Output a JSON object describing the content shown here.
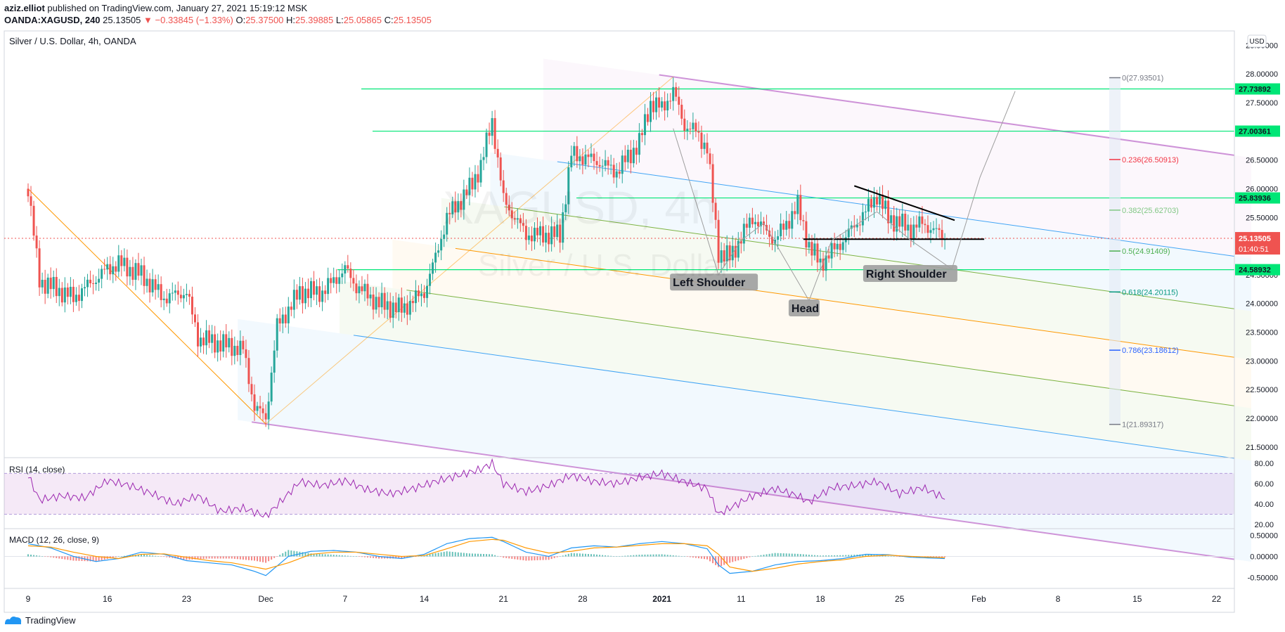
{
  "header": {
    "publisher": "aziz.elliot",
    "published_text": "published on TradingView.com, January 27, 2021 15:19:12 MSK",
    "symbol": "OANDA:XAGUSD, 240",
    "last": "25.13505",
    "change": "−0.33845 (−1.33%)",
    "o_label": "O:",
    "o": "25.37500",
    "h_label": "H:",
    "h": "25.39885",
    "l_label": "L:",
    "l": "25.05865",
    "c_label": "C:",
    "c": "25.13505"
  },
  "pane": {
    "title": "Silver / U.S. Dollar, 4h, OANDA",
    "currency": "USD",
    "watermark_symbol": "XAGUSD, 4h",
    "watermark_name": "Silver / U.S. Dollar"
  },
  "footer": {
    "brand": "TradingView"
  },
  "colors": {
    "up": "#26a69a",
    "down": "#ef5350",
    "rsi": "#9c27b0",
    "macd": "#2196f3",
    "signal": "#ff9800",
    "fib_levels": "#00e676",
    "pitchfork_outer": "#ce93d8",
    "pitchfork_blue": "#42a5f5",
    "pitchfork_green": "#7cb342",
    "pitchfork_median": "#ff9800"
  },
  "chart_data": [
    {
      "type": "candlestick",
      "title": "Silver / U.S. Dollar, 4h, OANDA",
      "y_axis_labels": [
        "28.50000",
        "28.00000",
        "27.50000",
        "27.00000",
        "26.50000",
        "26.00000",
        "25.50000",
        "25.00000",
        "24.50000",
        "24.00000",
        "23.50000",
        "23.00000",
        "22.50000",
        "22.00000",
        "21.50000"
      ],
      "ylim": [
        21.35,
        28.75
      ],
      "x_axis_labels": [
        "9",
        "16",
        "23",
        "Dec",
        "7",
        "14",
        "21",
        "28",
        "2021",
        "11",
        "18",
        "25",
        "Feb",
        "8",
        "15",
        "22"
      ],
      "price_path": [
        [
          9,
          26.0
        ],
        [
          10,
          24.4
        ],
        [
          13,
          24.1
        ],
        [
          16,
          24.6
        ],
        [
          17,
          24.7
        ],
        [
          19,
          24.5
        ],
        [
          21,
          24.1
        ],
        [
          23,
          24.2
        ],
        [
          24,
          23.4
        ],
        [
          26,
          23.3
        ],
        [
          28,
          23.2
        ],
        [
          29,
          22.2
        ],
        [
          30,
          22.0
        ],
        [
          31,
          23.6
        ],
        [
          33,
          24.2
        ],
        [
          35,
          24.2
        ],
        [
          37,
          24.6
        ],
        [
          38,
          24.3
        ],
        [
          40,
          24.0
        ],
        [
          42,
          23.9
        ],
        [
          44,
          24.2
        ],
        [
          45,
          24.8
        ],
        [
          46,
          25.5
        ],
        [
          48,
          26.0
        ],
        [
          49,
          26.4
        ],
        [
          50,
          27.2
        ],
        [
          51,
          25.8
        ],
        [
          53,
          25.2
        ],
        [
          56,
          25.2
        ],
        [
          57,
          26.6
        ],
        [
          59,
          26.5
        ],
        [
          61,
          26.3
        ],
        [
          63,
          26.8
        ],
        [
          64,
          27.5
        ],
        [
          65,
          27.4
        ],
        [
          66,
          27.7
        ],
        [
          67,
          27.1
        ],
        [
          68,
          27.0
        ],
        [
          69,
          26.7
        ],
        [
          70,
          24.9
        ],
        [
          71,
          24.8
        ],
        [
          73,
          25.5
        ],
        [
          75,
          25.1
        ],
        [
          77,
          25.7
        ],
        [
          78,
          25.0
        ],
        [
          79,
          24.7
        ],
        [
          81,
          25.1
        ],
        [
          83,
          25.6
        ],
        [
          84,
          25.9
        ],
        [
          85,
          25.5
        ],
        [
          87,
          25.3
        ],
        [
          88,
          25.4
        ],
        [
          90,
          25.15
        ]
      ],
      "series": [
        {
          "name": "Left Shoulder",
          "values": []
        },
        {
          "name": "Head",
          "values": []
        },
        {
          "name": "Right Shoulder",
          "values": []
        }
      ],
      "last_price_label": "25.13505",
      "countdown_label": "01:40:51",
      "horizontal_levels": [
        {
          "value": 27.73892,
          "label": "27.73892"
        },
        {
          "value": 27.00361,
          "label": "27.00361"
        },
        {
          "value": 25.83936,
          "label": "25.83936"
        },
        {
          "value": 24.58932,
          "label": "24.58932"
        }
      ],
      "fib_retracement": [
        {
          "ratio": "0",
          "price": 27.93501,
          "label": "0(27.93501)",
          "color": "#787b86"
        },
        {
          "ratio": "0.236",
          "price": 26.50913,
          "label": "0.236(26.50913)",
          "color": "#f23645"
        },
        {
          "ratio": "0.382",
          "price": 25.62703,
          "label": "0.382(25.62703)",
          "color": "#81c784"
        },
        {
          "ratio": "0.5",
          "price": 24.91409,
          "label": "0.5(24.91409)",
          "color": "#4caf50"
        },
        {
          "ratio": "0.618",
          "price": 24.20115,
          "label": "0.618(24.20115)",
          "color": "#089981"
        },
        {
          "ratio": "0.786",
          "price": 23.18612,
          "label": "0.786(23.18612)",
          "color": "#2962ff"
        },
        {
          "ratio": "1",
          "price": 21.89317,
          "label": "1(21.89317)",
          "color": "#787b86"
        }
      ],
      "annotations": [
        "Left Shoulder",
        "Head",
        "Right Shoulder"
      ]
    },
    {
      "type": "line",
      "title": "RSI (14, close)",
      "y_axis_labels": [
        "80.00",
        "60.00",
        "40.00",
        "20.00"
      ],
      "ylim": [
        18,
        84
      ],
      "bands": [
        30,
        70
      ],
      "values_path": [
        [
          9,
          68
        ],
        [
          10,
          44
        ],
        [
          12,
          48
        ],
        [
          14,
          46
        ],
        [
          16,
          63
        ],
        [
          18,
          58
        ],
        [
          20,
          50
        ],
        [
          22,
          40
        ],
        [
          24,
          48
        ],
        [
          26,
          33
        ],
        [
          28,
          36
        ],
        [
          30,
          28
        ],
        [
          32,
          50
        ],
        [
          33,
          62
        ],
        [
          35,
          58
        ],
        [
          37,
          63
        ],
        [
          39,
          54
        ],
        [
          41,
          50
        ],
        [
          43,
          55
        ],
        [
          45,
          62
        ],
        [
          47,
          68
        ],
        [
          49,
          74
        ],
        [
          50,
          80
        ],
        [
          51,
          60
        ],
        [
          53,
          52
        ],
        [
          55,
          58
        ],
        [
          57,
          68
        ],
        [
          59,
          62
        ],
        [
          61,
          60
        ],
        [
          63,
          66
        ],
        [
          65,
          70
        ],
        [
          67,
          62
        ],
        [
          69,
          55
        ],
        [
          70,
          30
        ],
        [
          71,
          36
        ],
        [
          73,
          48
        ],
        [
          75,
          55
        ],
        [
          77,
          48
        ],
        [
          78,
          42
        ],
        [
          80,
          56
        ],
        [
          82,
          58
        ],
        [
          84,
          62
        ],
        [
          86,
          50
        ],
        [
          88,
          56
        ],
        [
          90,
          46
        ]
      ]
    },
    {
      "type": "bar",
      "title": "MACD (12, 26, close, 9)",
      "y_axis_labels": [
        "0.50000",
        "0.00000",
        "-0.50000"
      ],
      "ylim": [
        -0.72,
        0.62
      ],
      "macd_path": [
        [
          9,
          0.3
        ],
        [
          11,
          0.2
        ],
        [
          13,
          0.0
        ],
        [
          15,
          -0.12
        ],
        [
          17,
          -0.05
        ],
        [
          19,
          0.1
        ],
        [
          21,
          0.05
        ],
        [
          23,
          -0.1
        ],
        [
          25,
          -0.15
        ],
        [
          27,
          -0.2
        ],
        [
          29,
          -0.35
        ],
        [
          30,
          -0.45
        ],
        [
          32,
          0.0
        ],
        [
          34,
          0.12
        ],
        [
          36,
          0.14
        ],
        [
          38,
          0.1
        ],
        [
          40,
          0.0
        ],
        [
          42,
          -0.05
        ],
        [
          44,
          0.05
        ],
        [
          46,
          0.3
        ],
        [
          48,
          0.42
        ],
        [
          50,
          0.45
        ],
        [
          51,
          0.35
        ],
        [
          53,
          0.1
        ],
        [
          55,
          0.0
        ],
        [
          57,
          0.2
        ],
        [
          59,
          0.25
        ],
        [
          61,
          0.22
        ],
        [
          63,
          0.3
        ],
        [
          65,
          0.35
        ],
        [
          67,
          0.3
        ],
        [
          69,
          0.18
        ],
        [
          70,
          -0.2
        ],
        [
          71,
          -0.4
        ],
        [
          73,
          -0.35
        ],
        [
          75,
          -0.2
        ],
        [
          77,
          -0.12
        ],
        [
          79,
          -0.1
        ],
        [
          81,
          -0.05
        ],
        [
          83,
          0.05
        ],
        [
          85,
          0.04
        ],
        [
          87,
          -0.02
        ],
        [
          90,
          -0.05
        ]
      ],
      "signal_path": [
        [
          9,
          0.25
        ],
        [
          11,
          0.22
        ],
        [
          13,
          0.1
        ],
        [
          15,
          0.0
        ],
        [
          17,
          -0.05
        ],
        [
          19,
          0.05
        ],
        [
          21,
          0.06
        ],
        [
          23,
          -0.02
        ],
        [
          25,
          -0.1
        ],
        [
          27,
          -0.15
        ],
        [
          29,
          -0.25
        ],
        [
          30,
          -0.3
        ],
        [
          32,
          -0.15
        ],
        [
          34,
          0.05
        ],
        [
          36,
          0.1
        ],
        [
          38,
          0.1
        ],
        [
          40,
          0.05
        ],
        [
          42,
          0.0
        ],
        [
          44,
          0.02
        ],
        [
          46,
          0.18
        ],
        [
          48,
          0.35
        ],
        [
          50,
          0.4
        ],
        [
          51,
          0.38
        ],
        [
          53,
          0.2
        ],
        [
          55,
          0.08
        ],
        [
          57,
          0.12
        ],
        [
          59,
          0.2
        ],
        [
          61,
          0.22
        ],
        [
          63,
          0.26
        ],
        [
          65,
          0.3
        ],
        [
          67,
          0.3
        ],
        [
          69,
          0.25
        ],
        [
          70,
          0.05
        ],
        [
          71,
          -0.25
        ],
        [
          73,
          -0.35
        ],
        [
          75,
          -0.28
        ],
        [
          77,
          -0.18
        ],
        [
          79,
          -0.12
        ],
        [
          81,
          -0.08
        ],
        [
          83,
          0.0
        ],
        [
          85,
          0.03
        ],
        [
          87,
          0.0
        ],
        [
          90,
          -0.03
        ]
      ]
    }
  ]
}
